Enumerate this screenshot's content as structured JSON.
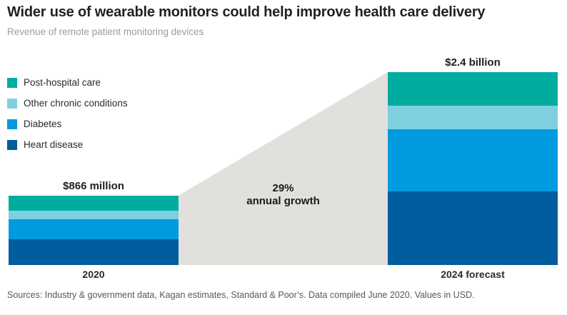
{
  "chart_data": {
    "type": "bar",
    "subtype": "stacked",
    "title": "Wider use of wearable monitors could help improve health care delivery",
    "subtitle": "Revenue of remote patient monitoring devices",
    "unit": "USD millions",
    "categories": [
      "2020",
      "2024 forecast"
    ],
    "series": [
      {
        "name": "Post-hospital care",
        "color": "#00aca0",
        "values": [
          194,
          420
        ]
      },
      {
        "name": "Other chronic conditions",
        "color": "#7fd0df",
        "values": [
          100,
          290
        ]
      },
      {
        "name": "Diabetes",
        "color": "#009ade",
        "values": [
          252,
          770
        ]
      },
      {
        "name": "Heart disease",
        "color": "#005d9e",
        "values": [
          320,
          920
        ]
      }
    ],
    "totals": [
      866,
      2400
    ],
    "total_labels": [
      "$866 million",
      "$2.4 billion"
    ],
    "annotation": {
      "line1": "29%",
      "line2": "annual growth"
    },
    "connector_color": "#e2e0dc",
    "legend_position": "left",
    "grid": false,
    "source": "Sources: Industry & government data, Kagan estimates, Standard & Poor’s. Data compiled June 2020. Values in USD."
  }
}
